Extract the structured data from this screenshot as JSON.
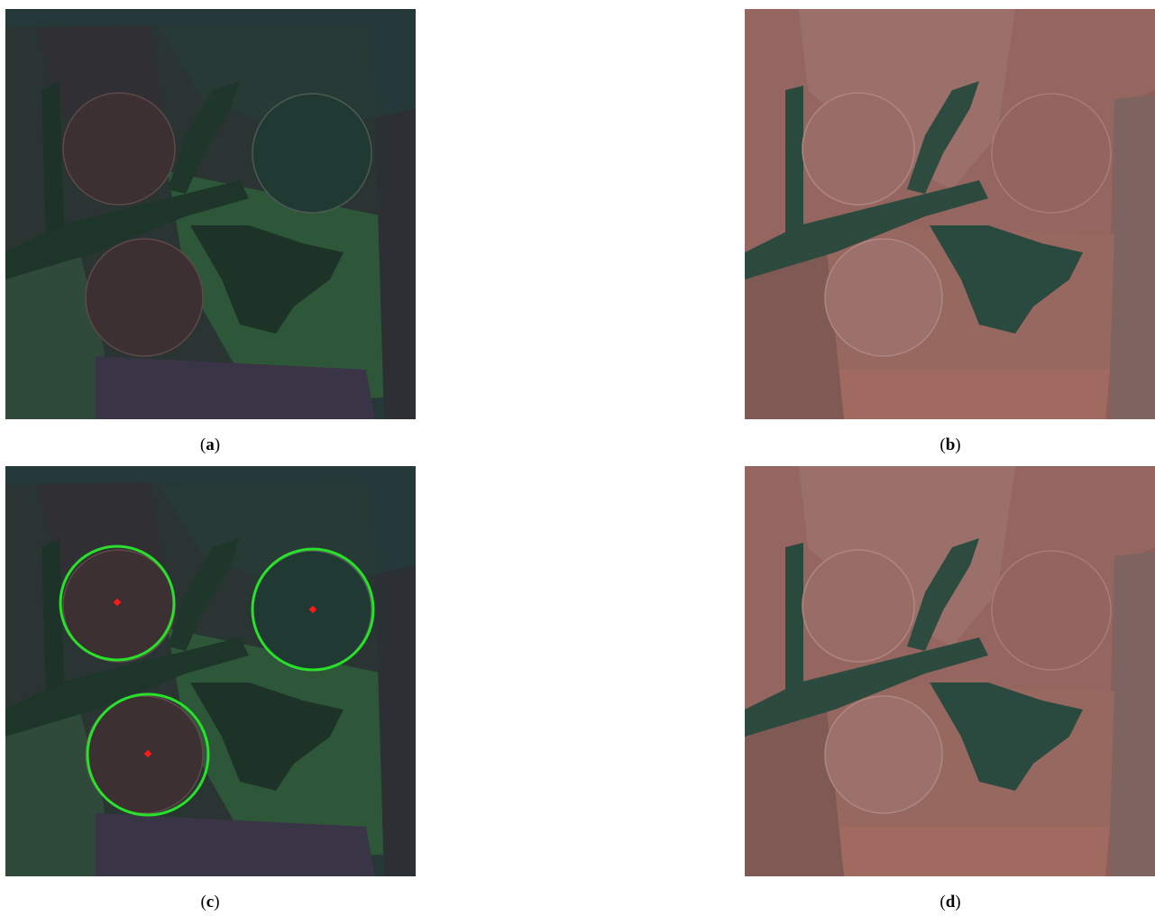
{
  "figure": {
    "panels": [
      {
        "open": "(",
        "letter": "a",
        "close": ")"
      },
      {
        "open": "(",
        "letter": "b",
        "close": ")"
      },
      {
        "open": "(",
        "letter": "c",
        "close": ")"
      },
      {
        "open": "(",
        "letter": "d",
        "close": ")"
      }
    ]
  }
}
